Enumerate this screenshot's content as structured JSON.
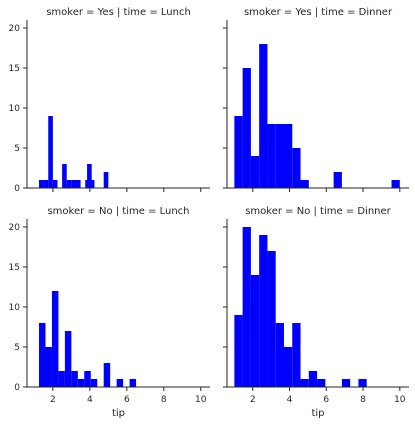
{
  "chart_data": {
    "type": "bar",
    "layout": "facet-grid",
    "xlabel": "tip",
    "xlim": [
      0.6,
      10.5
    ],
    "ylim": [
      0,
      21
    ],
    "xticks": [
      2,
      4,
      6,
      8,
      10
    ],
    "yticks": [
      0,
      5,
      10,
      15,
      20
    ],
    "bar_color": "#0000ff",
    "panels": [
      {
        "title": "smoker = Yes | time = Lunch",
        "bin_width": 0.25,
        "bins": [
          {
            "x": 1.25,
            "count": 1
          },
          {
            "x": 1.5,
            "count": 1
          },
          {
            "x": 1.75,
            "count": 9
          },
          {
            "x": 2.0,
            "count": 1
          },
          {
            "x": 2.5,
            "count": 3
          },
          {
            "x": 2.75,
            "count": 1
          },
          {
            "x": 3.0,
            "count": 1
          },
          {
            "x": 3.25,
            "count": 1
          },
          {
            "x": 3.75,
            "count": 1
          },
          {
            "x": 3.85,
            "count": 3
          },
          {
            "x": 4.0,
            "count": 1
          },
          {
            "x": 4.75,
            "count": 2
          }
        ]
      },
      {
        "title": "smoker = Yes | time = Dinner",
        "bin_width": 0.45,
        "bins": [
          {
            "x": 1.0,
            "count": 9
          },
          {
            "x": 1.45,
            "count": 15
          },
          {
            "x": 1.9,
            "count": 4
          },
          {
            "x": 2.35,
            "count": 18
          },
          {
            "x": 2.8,
            "count": 8
          },
          {
            "x": 3.25,
            "count": 8
          },
          {
            "x": 3.7,
            "count": 8
          },
          {
            "x": 4.15,
            "count": 5
          },
          {
            "x": 4.6,
            "count": 1
          },
          {
            "x": 6.4,
            "count": 2
          },
          {
            "x": 9.55,
            "count": 1
          }
        ]
      },
      {
        "title": "smoker = No | time = Lunch",
        "bin_width": 0.35,
        "bins": [
          {
            "x": 1.25,
            "count": 8
          },
          {
            "x": 1.6,
            "count": 5
          },
          {
            "x": 1.95,
            "count": 12
          },
          {
            "x": 2.3,
            "count": 2
          },
          {
            "x": 2.65,
            "count": 7
          },
          {
            "x": 3.0,
            "count": 2
          },
          {
            "x": 3.35,
            "count": 1
          },
          {
            "x": 3.7,
            "count": 2
          },
          {
            "x": 4.05,
            "count": 1
          },
          {
            "x": 4.75,
            "count": 3
          },
          {
            "x": 5.45,
            "count": 1
          },
          {
            "x": 6.15,
            "count": 1
          }
        ]
      },
      {
        "title": "smoker = No | time = Dinner",
        "bin_width": 0.45,
        "bins": [
          {
            "x": 1.0,
            "count": 9
          },
          {
            "x": 1.45,
            "count": 20
          },
          {
            "x": 1.9,
            "count": 14
          },
          {
            "x": 2.35,
            "count": 19
          },
          {
            "x": 2.8,
            "count": 17
          },
          {
            "x": 3.25,
            "count": 8
          },
          {
            "x": 3.7,
            "count": 5
          },
          {
            "x": 4.15,
            "count": 8
          },
          {
            "x": 4.6,
            "count": 1
          },
          {
            "x": 5.05,
            "count": 2
          },
          {
            "x": 5.5,
            "count": 1
          },
          {
            "x": 6.85,
            "count": 1
          },
          {
            "x": 7.75,
            "count": 1
          }
        ]
      }
    ]
  }
}
